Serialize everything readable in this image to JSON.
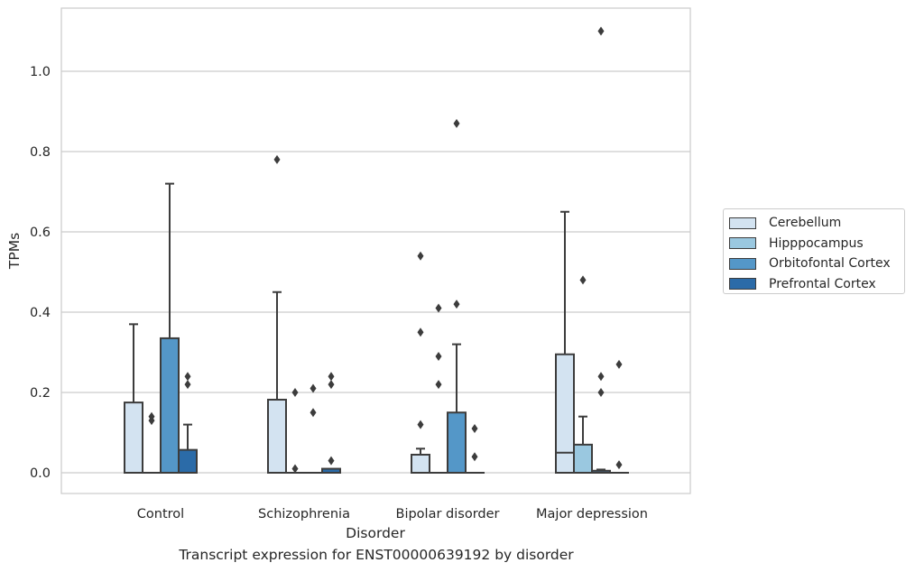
{
  "caption": "Transcript expression for ENST00000639192 by disorder",
  "chart_data": {
    "type": "box",
    "xlabel": "Disorder",
    "ylabel": "TPMs",
    "ylim": [
      -0.05,
      1.16
    ],
    "yticks": [
      0.0,
      0.2,
      0.4,
      0.6,
      0.8,
      1.0
    ],
    "ytick_labels": [
      "0.0",
      "0.2",
      "0.4",
      "0.6",
      "0.8",
      "1.0"
    ],
    "grid": "horizontal",
    "legend_position": "right",
    "categories": [
      "Control",
      "Schizophrenia",
      "Bipolar disorder",
      "Major depression"
    ],
    "series": [
      {
        "name": "Cerebellum",
        "color": "#d3e3f1",
        "boxes": [
          {
            "q1": 0.0,
            "median": 0.0,
            "q3": 0.175,
            "whisker_low": 0.0,
            "whisker_high": 0.37,
            "outliers": []
          },
          {
            "q1": 0.0,
            "median": 0.0,
            "q3": 0.182,
            "whisker_low": 0.0,
            "whisker_high": 0.45,
            "outliers": [
              0.78
            ]
          },
          {
            "q1": 0.0,
            "median": 0.0,
            "q3": 0.045,
            "whisker_low": 0.0,
            "whisker_high": 0.06,
            "outliers": [
              0.12,
              0.35,
              0.54
            ]
          },
          {
            "q1": 0.0,
            "median": 0.05,
            "q3": 0.295,
            "whisker_low": 0.0,
            "whisker_high": 0.65,
            "outliers": []
          }
        ]
      },
      {
        "name": "Hipppocampus",
        "color": "#9ac8e0",
        "boxes": [
          {
            "q1": 0.0,
            "median": 0.0,
            "q3": 0.0,
            "whisker_low": 0.0,
            "whisker_high": 0.0,
            "outliers": [
              0.13,
              0.14
            ]
          },
          {
            "q1": 0.0,
            "median": 0.0,
            "q3": 0.0,
            "whisker_low": 0.0,
            "whisker_high": 0.0,
            "outliers": [
              0.01,
              0.2
            ]
          },
          {
            "q1": 0.0,
            "median": 0.0,
            "q3": 0.0,
            "whisker_low": 0.0,
            "whisker_high": 0.0,
            "outliers": [
              0.22,
              0.29,
              0.41
            ]
          },
          {
            "q1": 0.0,
            "median": 0.0,
            "q3": 0.07,
            "whisker_low": 0.0,
            "whisker_high": 0.14,
            "outliers": [
              0.48
            ]
          }
        ]
      },
      {
        "name": "Orbitofontal Cortex",
        "color": "#5497c8",
        "boxes": [
          {
            "q1": 0.0,
            "median": 0.0,
            "q3": 0.335,
            "whisker_low": 0.0,
            "whisker_high": 0.72,
            "outliers": []
          },
          {
            "q1": 0.0,
            "median": 0.0,
            "q3": 0.0,
            "whisker_low": 0.0,
            "whisker_high": 0.0,
            "outliers": [
              0.15,
              0.21
            ]
          },
          {
            "q1": 0.0,
            "median": 0.0,
            "q3": 0.15,
            "whisker_low": 0.0,
            "whisker_high": 0.32,
            "outliers": [
              0.42,
              0.87
            ]
          },
          {
            "q1": 0.0,
            "median": 0.0,
            "q3": 0.005,
            "whisker_low": 0.0,
            "whisker_high": 0.008,
            "outliers": [
              0.2,
              0.24,
              1.1
            ]
          }
        ]
      },
      {
        "name": "Prefrontal Cortex",
        "color": "#2b6ba8",
        "boxes": [
          {
            "q1": 0.0,
            "median": 0.0,
            "q3": 0.057,
            "whisker_low": 0.0,
            "whisker_high": 0.12,
            "outliers": [
              0.22,
              0.24
            ]
          },
          {
            "q1": 0.0,
            "median": 0.0,
            "q3": 0.01,
            "whisker_low": 0.0,
            "whisker_high": 0.01,
            "outliers": [
              0.03,
              0.22,
              0.24
            ]
          },
          {
            "q1": 0.0,
            "median": 0.0,
            "q3": 0.0,
            "whisker_low": 0.0,
            "whisker_high": 0.0,
            "outliers": [
              0.04,
              0.11
            ]
          },
          {
            "q1": 0.0,
            "median": 0.0,
            "q3": 0.0,
            "whisker_low": 0.0,
            "whisker_high": 0.0,
            "outliers": [
              0.02,
              0.27
            ]
          }
        ]
      }
    ]
  }
}
